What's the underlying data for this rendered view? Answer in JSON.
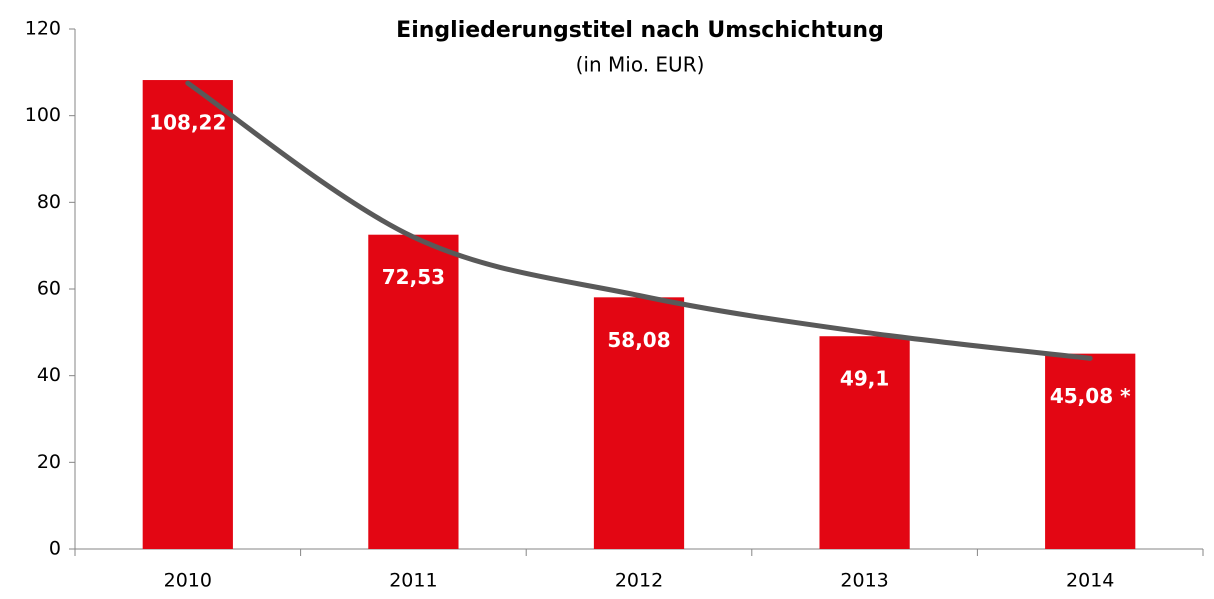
{
  "chart_data": {
    "type": "bar",
    "title": "Eingliederungstitel nach Umschichtung",
    "subtitle": "(in Mio. EUR)",
    "categories": [
      "2010",
      "2011",
      "2012",
      "2013",
      "2014"
    ],
    "values": [
      108.22,
      72.53,
      58.08,
      49.1,
      45.08
    ],
    "value_labels": [
      "108,22",
      "72,53",
      "58,08",
      "49,1",
      "45,08 *"
    ],
    "color": "#e30613",
    "trendline": {
      "color": "#595959",
      "values": [
        107.5,
        72,
        58.5,
        50,
        44
      ]
    },
    "ylim": [
      0,
      120
    ],
    "yticks": [
      0,
      20,
      40,
      60,
      80,
      100,
      120
    ],
    "grid": false
  }
}
